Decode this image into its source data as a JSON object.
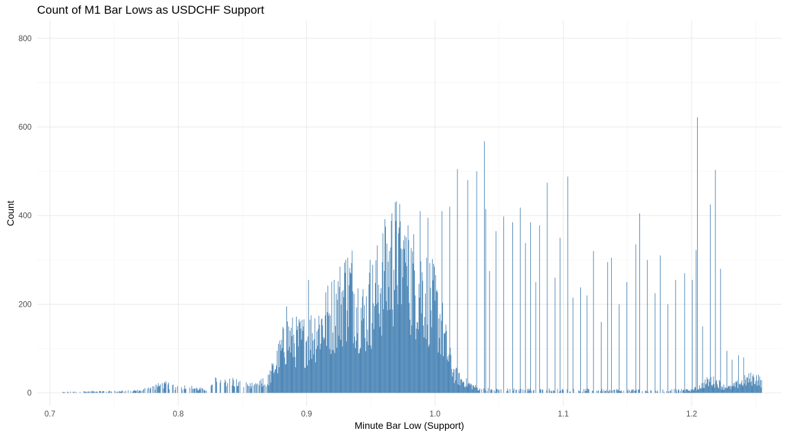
{
  "chart_data": {
    "type": "bar",
    "title": "Count of M1 Bar Lows as USDCHF Support",
    "xlabel": "Minute Bar Low (Support)",
    "ylabel": "Count",
    "xlim": [
      0.69,
      1.27
    ],
    "ylim": [
      -30,
      840
    ],
    "x_ticks": [
      0.7,
      0.8,
      0.9,
      1.0,
      1.1,
      1.2
    ],
    "x_tick_labels": [
      "0.7",
      "0.8",
      "0.9",
      "1.0",
      "1.1",
      "1.2"
    ],
    "y_ticks": [
      0,
      200,
      400,
      600,
      800
    ],
    "y_tick_labels": [
      "0",
      "200",
      "400",
      "600",
      "800"
    ],
    "grid": true,
    "legend": "none",
    "bar_color": "#4682B4",
    "bin_width": 0.0005,
    "x_start": 0.7095,
    "x_end": 1.2545,
    "density_envelope": [
      [
        0.71,
        2
      ],
      [
        0.75,
        4
      ],
      [
        0.77,
        5
      ],
      [
        0.78,
        14
      ],
      [
        0.79,
        18
      ],
      [
        0.8,
        14
      ],
      [
        0.81,
        12
      ],
      [
        0.82,
        7
      ],
      [
        0.825,
        12
      ],
      [
        0.83,
        28
      ],
      [
        0.84,
        30
      ],
      [
        0.85,
        18
      ],
      [
        0.86,
        15
      ],
      [
        0.87,
        30
      ],
      [
        0.875,
        60
      ],
      [
        0.88,
        95
      ],
      [
        0.885,
        130
      ],
      [
        0.89,
        120
      ],
      [
        0.9,
        125
      ],
      [
        0.91,
        155
      ],
      [
        0.92,
        185
      ],
      [
        0.93,
        230
      ],
      [
        0.935,
        245
      ],
      [
        0.94,
        200
      ],
      [
        0.945,
        175
      ],
      [
        0.95,
        205
      ],
      [
        0.96,
        270
      ],
      [
        0.97,
        315
      ],
      [
        0.975,
        290
      ],
      [
        0.98,
        270
      ],
      [
        0.99,
        245
      ],
      [
        1.0,
        200
      ],
      [
        1.005,
        160
      ],
      [
        1.01,
        90
      ],
      [
        1.015,
        45
      ],
      [
        1.02,
        30
      ],
      [
        1.03,
        15
      ],
      [
        1.035,
        8
      ],
      [
        1.05,
        7
      ],
      [
        1.1,
        7
      ],
      [
        1.15,
        6
      ],
      [
        1.2,
        6
      ],
      [
        1.205,
        12
      ],
      [
        1.21,
        22
      ],
      [
        1.215,
        28
      ],
      [
        1.22,
        24
      ],
      [
        1.225,
        14
      ],
      [
        1.23,
        12
      ],
      [
        1.24,
        26
      ],
      [
        1.245,
        32
      ],
      [
        1.25,
        35
      ],
      [
        1.2545,
        25
      ]
    ],
    "highlighted_bars": [
      [
        0.8845,
        195
      ],
      [
        0.9015,
        255
      ],
      [
        0.9305,
        300
      ],
      [
        0.9495,
        300
      ],
      [
        0.9615,
        375
      ],
      [
        0.9665,
        405
      ],
      [
        0.9715,
        360
      ],
      [
        0.9765,
        355
      ],
      [
        0.9795,
        345
      ],
      [
        0.9885,
        410
      ],
      [
        0.9945,
        395
      ],
      [
        1.0055,
        410
      ],
      [
        1.0115,
        420
      ],
      [
        1.0175,
        505
      ],
      [
        1.0255,
        480
      ],
      [
        1.0325,
        500
      ],
      [
        1.0385,
        568
      ],
      [
        1.0395,
        415
      ],
      [
        1.0425,
        275
      ],
      [
        1.0475,
        365
      ],
      [
        1.0535,
        398
      ],
      [
        1.0605,
        385
      ],
      [
        1.0665,
        418
      ],
      [
        1.0705,
        338
      ],
      [
        1.0745,
        385
      ],
      [
        1.0785,
        250
      ],
      [
        1.0815,
        378
      ],
      [
        1.0875,
        474
      ],
      [
        1.0935,
        260
      ],
      [
        1.0975,
        350
      ],
      [
        1.1035,
        488
      ],
      [
        1.1075,
        215
      ],
      [
        1.1135,
        238
      ],
      [
        1.1185,
        220
      ],
      [
        1.1235,
        320
      ],
      [
        1.1295,
        160
      ],
      [
        1.1345,
        295
      ],
      [
        1.1375,
        305
      ],
      [
        1.1435,
        200
      ],
      [
        1.1495,
        250
      ],
      [
        1.1565,
        335
      ],
      [
        1.1595,
        405
      ],
      [
        1.1655,
        300
      ],
      [
        1.1715,
        225
      ],
      [
        1.1755,
        310
      ],
      [
        1.1815,
        200
      ],
      [
        1.1875,
        255
      ],
      [
        1.1945,
        270
      ],
      [
        1.2005,
        255
      ],
      [
        1.2035,
        322
      ],
      [
        1.2045,
        622
      ],
      [
        1.2085,
        150
      ],
      [
        1.2145,
        425
      ],
      [
        1.2185,
        503
      ],
      [
        1.2225,
        280
      ],
      [
        1.2275,
        95
      ],
      [
        1.2315,
        75
      ],
      [
        1.2365,
        85
      ],
      [
        1.2405,
        80
      ]
    ]
  }
}
